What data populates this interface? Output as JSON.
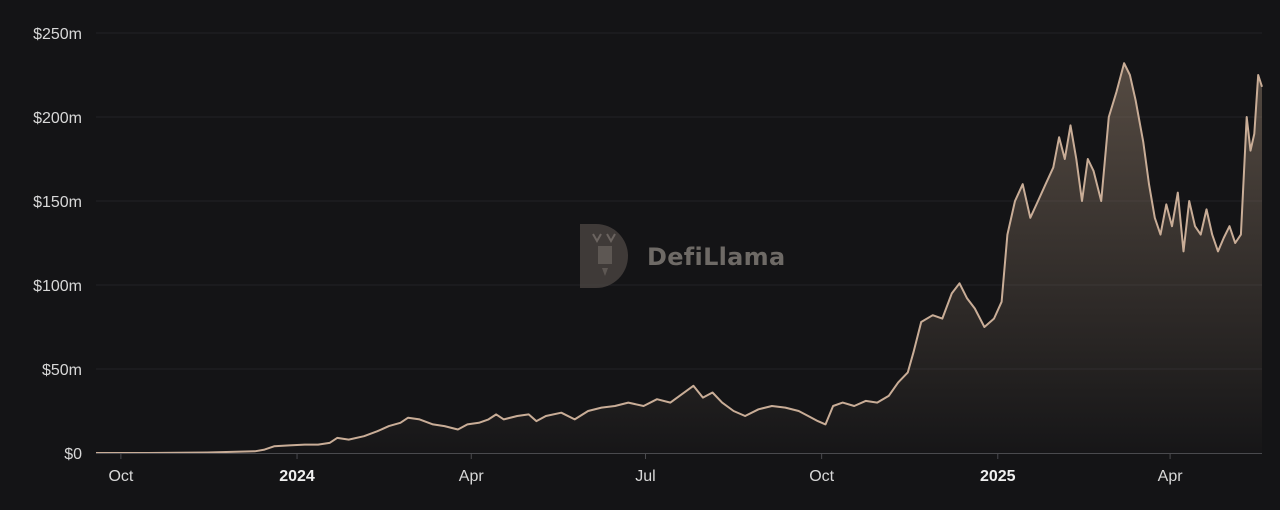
{
  "watermark": {
    "text": "DefiLlama"
  },
  "colors": {
    "background": "#141416",
    "line": "#c9ad97",
    "area_top": "#8a7766",
    "grid": "#222226",
    "axis": "#4a4a4e",
    "watermark": "#5b5450"
  },
  "chart_data": {
    "type": "area",
    "title": "",
    "xlabel": "",
    "ylabel": "",
    "grid": true,
    "ylim": [
      0,
      250
    ],
    "y_unit": "millions USD",
    "y_ticks": [
      {
        "value": 0,
        "label": "$0"
      },
      {
        "value": 50,
        "label": "$50m"
      },
      {
        "value": 100,
        "label": "$100m"
      },
      {
        "value": 150,
        "label": "$150m"
      },
      {
        "value": 200,
        "label": "$200m"
      },
      {
        "value": 250,
        "label": "$250m"
      }
    ],
    "x_range": [
      "2023-09-18",
      "2025-05-19"
    ],
    "x_ticks": [
      {
        "date": "2023-10-01",
        "label": "Oct",
        "bold": false
      },
      {
        "date": "2024-01-01",
        "label": "2024",
        "bold": true
      },
      {
        "date": "2024-04-01",
        "label": "Apr",
        "bold": false
      },
      {
        "date": "2024-07-01",
        "label": "Jul",
        "bold": false
      },
      {
        "date": "2024-10-01",
        "label": "Oct",
        "bold": false
      },
      {
        "date": "2025-01-01",
        "label": "2025",
        "bold": true
      },
      {
        "date": "2025-04-01",
        "label": "Apr",
        "bold": false
      }
    ],
    "series": [
      {
        "values": [
          [
            "2023-09-18",
            0
          ],
          [
            "2023-10-15",
            0
          ],
          [
            "2023-11-15",
            0.3
          ],
          [
            "2023-12-10",
            1
          ],
          [
            "2023-12-15",
            2
          ],
          [
            "2023-12-20",
            4
          ],
          [
            "2023-12-28",
            4.5
          ],
          [
            "2024-01-05",
            5
          ],
          [
            "2024-01-12",
            5
          ],
          [
            "2024-01-18",
            6
          ],
          [
            "2024-01-22",
            9
          ],
          [
            "2024-01-28",
            8
          ],
          [
            "2024-02-05",
            10
          ],
          [
            "2024-02-12",
            13
          ],
          [
            "2024-02-18",
            16
          ],
          [
            "2024-02-24",
            18
          ],
          [
            "2024-02-28",
            21
          ],
          [
            "2024-03-05",
            20
          ],
          [
            "2024-03-12",
            17
          ],
          [
            "2024-03-18",
            16
          ],
          [
            "2024-03-25",
            14
          ],
          [
            "2024-03-30",
            17
          ],
          [
            "2024-04-05",
            18
          ],
          [
            "2024-04-10",
            20
          ],
          [
            "2024-04-14",
            23
          ],
          [
            "2024-04-18",
            20
          ],
          [
            "2024-04-25",
            22
          ],
          [
            "2024-05-01",
            23
          ],
          [
            "2024-05-05",
            19
          ],
          [
            "2024-05-10",
            22
          ],
          [
            "2024-05-18",
            24
          ],
          [
            "2024-05-25",
            20
          ],
          [
            "2024-06-01",
            25
          ],
          [
            "2024-06-08",
            27
          ],
          [
            "2024-06-15",
            28
          ],
          [
            "2024-06-22",
            30
          ],
          [
            "2024-06-30",
            28
          ],
          [
            "2024-07-07",
            32
          ],
          [
            "2024-07-14",
            30
          ],
          [
            "2024-07-20",
            35
          ],
          [
            "2024-07-26",
            40
          ],
          [
            "2024-07-31",
            33
          ],
          [
            "2024-08-05",
            36
          ],
          [
            "2024-08-10",
            30
          ],
          [
            "2024-08-16",
            25
          ],
          [
            "2024-08-22",
            22
          ],
          [
            "2024-08-29",
            26
          ],
          [
            "2024-09-05",
            28
          ],
          [
            "2024-09-12",
            27
          ],
          [
            "2024-09-19",
            25
          ],
          [
            "2024-09-24",
            22
          ],
          [
            "2024-09-29",
            19
          ],
          [
            "2024-10-03",
            17
          ],
          [
            "2024-10-07",
            28
          ],
          [
            "2024-10-12",
            30
          ],
          [
            "2024-10-18",
            28
          ],
          [
            "2024-10-24",
            31
          ],
          [
            "2024-10-30",
            30
          ],
          [
            "2024-11-05",
            34
          ],
          [
            "2024-11-10",
            42
          ],
          [
            "2024-11-15",
            48
          ],
          [
            "2024-11-18",
            60
          ],
          [
            "2024-11-22",
            78
          ],
          [
            "2024-11-28",
            82
          ],
          [
            "2024-12-03",
            80
          ],
          [
            "2024-12-08",
            95
          ],
          [
            "2024-12-12",
            101
          ],
          [
            "2024-12-16",
            92
          ],
          [
            "2024-12-20",
            86
          ],
          [
            "2024-12-25",
            75
          ],
          [
            "2024-12-30",
            80
          ],
          [
            "2025-01-03",
            90
          ],
          [
            "2025-01-06",
            130
          ],
          [
            "2025-01-10",
            150
          ],
          [
            "2025-01-14",
            160
          ],
          [
            "2025-01-18",
            140
          ],
          [
            "2025-01-22",
            150
          ],
          [
            "2025-01-26",
            160
          ],
          [
            "2025-01-30",
            170
          ],
          [
            "2025-02-02",
            188
          ],
          [
            "2025-02-05",
            175
          ],
          [
            "2025-02-08",
            195
          ],
          [
            "2025-02-11",
            175
          ],
          [
            "2025-02-14",
            150
          ],
          [
            "2025-02-17",
            175
          ],
          [
            "2025-02-20",
            168
          ],
          [
            "2025-02-24",
            150
          ],
          [
            "2025-02-28",
            200
          ],
          [
            "2025-03-04",
            215
          ],
          [
            "2025-03-08",
            232
          ],
          [
            "2025-03-11",
            225
          ],
          [
            "2025-03-14",
            210
          ],
          [
            "2025-03-18",
            185
          ],
          [
            "2025-03-21",
            160
          ],
          [
            "2025-03-24",
            140
          ],
          [
            "2025-03-27",
            130
          ],
          [
            "2025-03-30",
            148
          ],
          [
            "2025-04-02",
            135
          ],
          [
            "2025-04-05",
            155
          ],
          [
            "2025-04-08",
            120
          ],
          [
            "2025-04-11",
            150
          ],
          [
            "2025-04-14",
            135
          ],
          [
            "2025-04-17",
            130
          ],
          [
            "2025-04-20",
            145
          ],
          [
            "2025-04-23",
            130
          ],
          [
            "2025-04-26",
            120
          ],
          [
            "2025-04-29",
            128
          ],
          [
            "2025-05-02",
            135
          ],
          [
            "2025-05-05",
            125
          ],
          [
            "2025-05-08",
            130
          ],
          [
            "2025-05-11",
            200
          ],
          [
            "2025-05-13",
            180
          ],
          [
            "2025-05-15",
            190
          ],
          [
            "2025-05-17",
            225
          ],
          [
            "2025-05-19",
            218
          ]
        ]
      }
    ]
  }
}
